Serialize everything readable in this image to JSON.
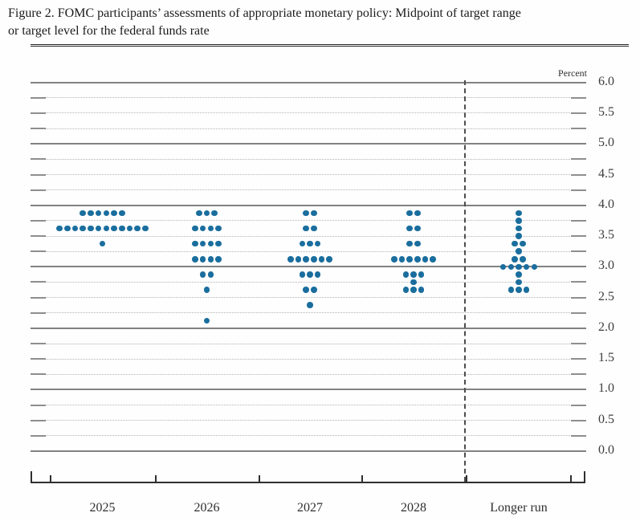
{
  "figure": {
    "title_line1": "Figure 2. FOMC participants’ assessments of appropriate monetary policy: Midpoint of target range",
    "title_line2": "or target level for the federal funds rate"
  },
  "chart_data": {
    "type": "scatter",
    "title": "Figure 2. FOMC participants’ assessments of appropriate monetary policy: Midpoint of target range or target level for the federal funds rate",
    "ylabel": "Percent",
    "ylim": [
      0.0,
      6.0
    ],
    "y_minor_step": 0.25,
    "y_major_step": 1.0,
    "ytick_step_labeled": 0.5,
    "ytick_labels": [
      "6.0",
      "5.5",
      "5.0",
      "4.5",
      "4.0",
      "3.5",
      "3.0",
      "2.5",
      "2.0",
      "1.5",
      "1.0",
      "0.5",
      "0.0"
    ],
    "grid": "dotted minors every 0.25, solid dark lines at whole percents",
    "legend_position": "none",
    "categories": [
      "2025",
      "2026",
      "2027",
      "2028",
      "Longer run"
    ],
    "separator_before_category": "Longer run",
    "participants_per_column": 19,
    "dots": [
      {
        "category": "2025",
        "rows": [
          {
            "rate": 3.875,
            "count": 6
          },
          {
            "rate": 3.625,
            "count": 12
          },
          {
            "rate": 3.375,
            "count": 1
          }
        ]
      },
      {
        "category": "2026",
        "rows": [
          {
            "rate": 3.875,
            "count": 3
          },
          {
            "rate": 3.625,
            "count": 4
          },
          {
            "rate": 3.375,
            "count": 4
          },
          {
            "rate": 3.125,
            "count": 4
          },
          {
            "rate": 2.875,
            "count": 2
          },
          {
            "rate": 2.625,
            "count": 1
          },
          {
            "rate": 2.125,
            "count": 1
          }
        ]
      },
      {
        "category": "2027",
        "rows": [
          {
            "rate": 3.875,
            "count": 2
          },
          {
            "rate": 3.625,
            "count": 2
          },
          {
            "rate": 3.375,
            "count": 3
          },
          {
            "rate": 3.125,
            "count": 6
          },
          {
            "rate": 2.875,
            "count": 3
          },
          {
            "rate": 2.625,
            "count": 2
          },
          {
            "rate": 2.375,
            "count": 1
          }
        ]
      },
      {
        "category": "2028",
        "rows": [
          {
            "rate": 3.875,
            "count": 2
          },
          {
            "rate": 3.625,
            "count": 2
          },
          {
            "rate": 3.375,
            "count": 2
          },
          {
            "rate": 3.125,
            "count": 6
          },
          {
            "rate": 2.875,
            "count": 3
          },
          {
            "rate": 2.75,
            "count": 1
          },
          {
            "rate": 2.625,
            "count": 3
          }
        ]
      },
      {
        "category": "Longer run",
        "rows": [
          {
            "rate": 3.875,
            "count": 1
          },
          {
            "rate": 3.75,
            "count": 1
          },
          {
            "rate": 3.625,
            "count": 1
          },
          {
            "rate": 3.5,
            "count": 1
          },
          {
            "rate": 3.375,
            "count": 2
          },
          {
            "rate": 3.25,
            "count": 1
          },
          {
            "rate": 3.125,
            "count": 2
          },
          {
            "rate": 3.0,
            "count": 5
          },
          {
            "rate": 2.875,
            "count": 1
          },
          {
            "rate": 2.75,
            "count": 1
          },
          {
            "rate": 2.625,
            "count": 3
          }
        ]
      }
    ],
    "colors": {
      "dot": "#1a6e9e",
      "major_grid": "#828282",
      "minor_grid": "#b3b3b3",
      "axis": "#2f2f2f",
      "text": "#2e2e2e"
    }
  }
}
